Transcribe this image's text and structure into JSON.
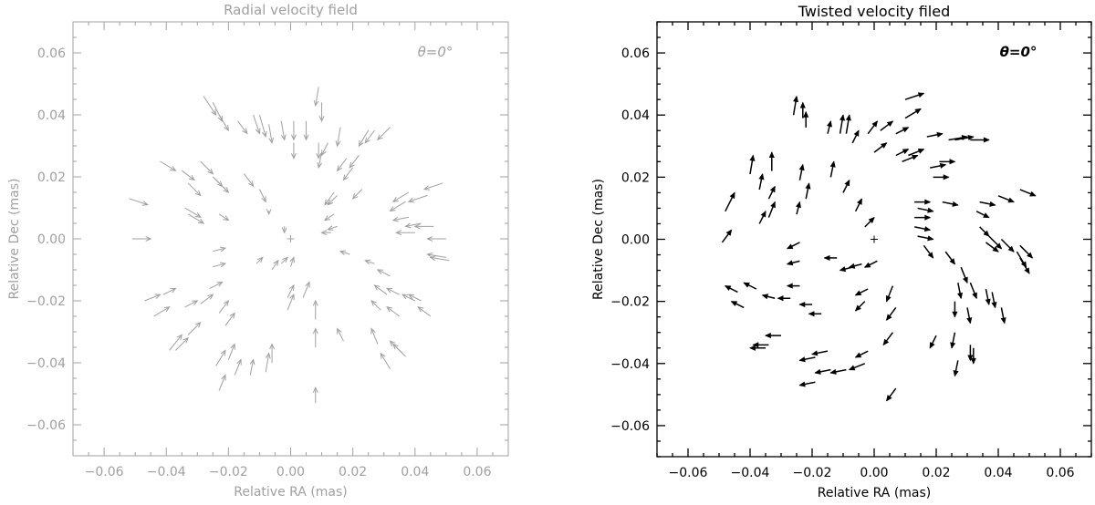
{
  "chart_data": [
    {
      "type": "scatter",
      "subtype": "vector-field",
      "title": "Radial velocity field",
      "annotation": "θ=0°",
      "xlabel": "Relative RA (mas)",
      "ylabel": "Relative Dec (mas)",
      "xlim": [
        -0.07,
        0.07
      ],
      "ylim": [
        -0.07,
        0.07
      ],
      "xticks": [
        -0.06,
        -0.04,
        -0.02,
        0.0,
        0.02,
        0.04,
        0.06
      ],
      "yticks": [
        -0.06,
        -0.04,
        -0.02,
        0.0,
        0.02,
        0.04,
        0.06
      ],
      "xtick_labels": [
        "−0.06",
        "−0.04",
        "−0.02",
        "0.00",
        "0.02",
        "0.04",
        "0.06"
      ],
      "ytick_labels": [
        "−0.06",
        "−0.04",
        "−0.02",
        "0.00",
        "0.02",
        "0.04",
        "0.06"
      ],
      "center_marker": [
        0,
        0
      ],
      "color": "#a0a0a0",
      "arrow_style": "open",
      "vectors": [
        [
          -0.052,
          0.013,
          0.006,
          -0.002
        ],
        [
          -0.051,
          0.0,
          0.006,
          0.0
        ],
        [
          -0.042,
          0.025,
          0.005,
          -0.003
        ],
        [
          -0.035,
          0.022,
          0.004,
          -0.003
        ],
        [
          -0.033,
          0.018,
          0.004,
          -0.004
        ],
        [
          -0.034,
          0.01,
          0.005,
          -0.003
        ],
        [
          -0.033,
          0.008,
          0.005,
          -0.003
        ],
        [
          -0.029,
          0.025,
          0.004,
          -0.004
        ],
        [
          -0.025,
          0.02,
          0.003,
          -0.003
        ],
        [
          -0.023,
          0.008,
          0.003,
          -0.002
        ],
        [
          -0.024,
          0.019,
          0.004,
          -0.004
        ],
        [
          -0.028,
          0.046,
          0.004,
          -0.006
        ],
        [
          -0.025,
          0.044,
          0.003,
          -0.006
        ],
        [
          -0.023,
          0.04,
          0.003,
          -0.005
        ],
        [
          -0.017,
          0.038,
          0.003,
          -0.004
        ],
        [
          -0.012,
          0.04,
          0.002,
          -0.006
        ],
        [
          -0.01,
          0.04,
          0.002,
          -0.007
        ],
        [
          -0.007,
          0.037,
          0.001,
          -0.006
        ],
        [
          -0.003,
          0.038,
          0.001,
          -0.006
        ],
        [
          0.001,
          0.038,
          0.0,
          -0.006
        ],
        [
          0.005,
          0.038,
          0.0,
          -0.006
        ],
        [
          0.009,
          0.049,
          -0.001,
          -0.006
        ],
        [
          0.01,
          0.044,
          0.0,
          -0.006
        ],
        [
          0.016,
          0.036,
          -0.001,
          -0.006
        ],
        [
          0.025,
          0.035,
          -0.003,
          -0.005
        ],
        [
          0.027,
          0.035,
          -0.003,
          -0.004
        ],
        [
          0.032,
          0.036,
          -0.004,
          -0.004
        ],
        [
          0.001,
          0.031,
          0.0,
          -0.005
        ],
        [
          0.009,
          0.031,
          0.0,
          -0.005
        ],
        [
          0.01,
          0.028,
          -0.001,
          -0.005
        ],
        [
          0.012,
          0.031,
          -0.002,
          -0.004
        ],
        [
          0.018,
          0.026,
          -0.003,
          -0.004
        ],
        [
          0.022,
          0.027,
          -0.003,
          -0.004
        ],
        [
          0.02,
          0.023,
          -0.003,
          -0.004
        ],
        [
          0.014,
          0.015,
          -0.003,
          -0.004
        ],
        [
          0.015,
          0.014,
          -0.003,
          -0.003
        ],
        [
          0.023,
          0.016,
          -0.003,
          -0.003
        ],
        [
          0.037,
          0.012,
          -0.005,
          -0.003
        ],
        [
          0.038,
          0.015,
          -0.005,
          -0.003
        ],
        [
          0.044,
          0.014,
          -0.006,
          -0.002
        ],
        [
          0.049,
          0.018,
          -0.006,
          -0.002
        ],
        [
          0.038,
          0.007,
          -0.005,
          -0.001
        ],
        [
          0.042,
          0.005,
          -0.005,
          -0.001
        ],
        [
          0.046,
          0.004,
          -0.006,
          0.0
        ],
        [
          0.04,
          0.002,
          -0.006,
          0.0
        ],
        [
          0.05,
          0.0,
          -0.006,
          0.0
        ],
        [
          0.051,
          -0.007,
          -0.006,
          0.001
        ],
        [
          0.05,
          -0.006,
          -0.006,
          0.001
        ],
        [
          0.014,
          0.008,
          -0.003,
          -0.002
        ],
        [
          0.015,
          0.004,
          -0.003,
          -0.001
        ],
        [
          0.013,
          0.002,
          -0.003,
          0.0
        ],
        [
          0.019,
          -0.005,
          -0.003,
          0.001
        ],
        [
          0.027,
          -0.008,
          -0.003,
          0.001
        ],
        [
          0.032,
          -0.012,
          -0.004,
          0.002
        ],
        [
          0.031,
          -0.018,
          -0.004,
          0.003
        ],
        [
          0.035,
          -0.018,
          -0.004,
          0.002
        ],
        [
          0.04,
          -0.02,
          -0.004,
          0.002
        ],
        [
          0.042,
          -0.02,
          -0.004,
          0.002
        ],
        [
          0.045,
          -0.025,
          -0.004,
          0.003
        ],
        [
          0.029,
          -0.023,
          -0.003,
          0.003
        ],
        [
          0.035,
          -0.025,
          -0.004,
          0.003
        ],
        [
          0.036,
          -0.037,
          -0.004,
          0.004
        ],
        [
          0.037,
          -0.038,
          -0.004,
          0.004
        ],
        [
          0.032,
          -0.042,
          -0.003,
          0.005
        ],
        [
          0.028,
          -0.034,
          -0.002,
          0.005
        ],
        [
          0.017,
          -0.033,
          -0.002,
          0.004
        ],
        [
          0.008,
          -0.035,
          0.0,
          0.006
        ],
        [
          0.008,
          -0.026,
          0.0,
          0.006
        ],
        [
          -0.001,
          -0.023,
          0.002,
          0.005
        ],
        [
          -0.001,
          -0.019,
          0.002,
          0.004
        ],
        [
          0.004,
          -0.019,
          0.002,
          0.005
        ],
        [
          0.0,
          -0.009,
          0.001,
          0.003
        ],
        [
          -0.003,
          -0.008,
          0.002,
          0.002
        ],
        [
          -0.006,
          -0.01,
          0.002,
          0.003
        ],
        [
          -0.011,
          -0.008,
          0.002,
          0.002
        ],
        [
          -0.025,
          -0.004,
          0.004,
          0.001
        ],
        [
          -0.025,
          -0.009,
          0.004,
          0.001
        ],
        [
          -0.026,
          -0.016,
          0.004,
          0.002
        ],
        [
          -0.029,
          -0.021,
          0.004,
          0.003
        ],
        [
          -0.023,
          -0.024,
          0.003,
          0.004
        ],
        [
          -0.021,
          -0.028,
          0.003,
          0.004
        ],
        [
          -0.034,
          -0.022,
          0.004,
          0.002
        ],
        [
          -0.041,
          -0.018,
          0.004,
          0.002
        ],
        [
          -0.047,
          -0.02,
          0.005,
          0.002
        ],
        [
          -0.044,
          -0.025,
          0.005,
          0.003
        ],
        [
          -0.039,
          -0.036,
          0.004,
          0.005
        ],
        [
          -0.037,
          -0.036,
          0.004,
          0.004
        ],
        [
          -0.033,
          -0.031,
          0.004,
          0.004
        ],
        [
          -0.024,
          -0.041,
          0.003,
          0.005
        ],
        [
          -0.02,
          -0.039,
          0.002,
          0.005
        ],
        [
          -0.023,
          -0.049,
          0.002,
          0.005
        ],
        [
          -0.018,
          -0.044,
          0.002,
          0.005
        ],
        [
          -0.013,
          -0.044,
          0.001,
          0.005
        ],
        [
          -0.008,
          -0.043,
          0.001,
          0.006
        ],
        [
          -0.006,
          -0.04,
          0.0,
          0.006
        ],
        [
          0.008,
          -0.053,
          0.0,
          0.005
        ],
        [
          -0.007,
          0.009,
          0.0,
          -0.001
        ],
        [
          -0.002,
          0.004,
          0.0,
          -0.002
        ],
        [
          -0.01,
          0.016,
          0.002,
          -0.004
        ],
        [
          -0.015,
          0.021,
          0.003,
          -0.004
        ]
      ]
    },
    {
      "type": "scatter",
      "subtype": "vector-field",
      "title": "Twisted velocity filed",
      "annotation": "θ=0°",
      "xlabel": "Relative RA (mas)",
      "ylabel": "Relative Dec (mas)",
      "xlim": [
        -0.07,
        0.07
      ],
      "ylim": [
        -0.07,
        0.07
      ],
      "xticks": [
        -0.06,
        -0.04,
        -0.02,
        0.0,
        0.02,
        0.04,
        0.06
      ],
      "yticks": [
        -0.06,
        -0.04,
        -0.02,
        0.0,
        0.02,
        0.04,
        0.06
      ],
      "xtick_labels": [
        "−0.06",
        "−0.04",
        "−0.02",
        "0.00",
        "0.02",
        "0.04",
        "0.06"
      ],
      "ytick_labels": [
        "−0.06",
        "−0.04",
        "−0.02",
        "0.00",
        "0.02",
        "0.04",
        "0.06"
      ],
      "center_marker": [
        0,
        0
      ],
      "color": "#000000",
      "arrow_style": "filled",
      "vectors": [
        [
          -0.048,
          0.009,
          0.003,
          0.006
        ],
        [
          -0.049,
          -0.001,
          0.003,
          0.004
        ],
        [
          -0.04,
          0.021,
          0.001,
          0.006
        ],
        [
          -0.037,
          0.016,
          0.001,
          0.005
        ],
        [
          -0.034,
          0.013,
          0.002,
          0.004
        ],
        [
          -0.037,
          0.005,
          0.002,
          0.004
        ],
        [
          -0.034,
          0.007,
          0.002,
          0.005
        ],
        [
          -0.033,
          0.022,
          0.0,
          0.006
        ],
        [
          -0.024,
          0.019,
          0.001,
          0.005
        ],
        [
          -0.025,
          0.008,
          0.001,
          0.004
        ],
        [
          -0.022,
          0.013,
          0.001,
          0.005
        ],
        [
          -0.026,
          0.04,
          0.001,
          0.006
        ],
        [
          -0.023,
          0.039,
          0.0,
          0.005
        ],
        [
          -0.022,
          0.036,
          0.0,
          0.005
        ],
        [
          -0.015,
          0.034,
          0.001,
          0.004
        ],
        [
          -0.011,
          0.034,
          0.001,
          0.006
        ],
        [
          -0.009,
          0.034,
          0.001,
          0.006
        ],
        [
          -0.007,
          0.031,
          0.002,
          0.004
        ],
        [
          -0.002,
          0.034,
          0.003,
          0.004
        ],
        [
          0.002,
          0.035,
          0.004,
          0.003
        ],
        [
          0.007,
          0.034,
          0.004,
          0.002
        ],
        [
          0.01,
          0.045,
          0.006,
          0.002
        ],
        [
          0.01,
          0.039,
          0.005,
          0.003
        ],
        [
          0.017,
          0.033,
          0.005,
          0.001
        ],
        [
          0.024,
          0.032,
          0.006,
          0.001
        ],
        [
          0.026,
          0.032,
          0.006,
          0.001
        ],
        [
          0.031,
          0.032,
          0.006,
          0.0
        ],
        [
          0.0,
          0.028,
          0.004,
          0.003
        ],
        [
          0.007,
          0.027,
          0.004,
          0.002
        ],
        [
          0.009,
          0.025,
          0.005,
          0.002
        ],
        [
          0.011,
          0.027,
          0.005,
          0.002
        ],
        [
          0.018,
          0.023,
          0.005,
          0.001
        ],
        [
          0.021,
          0.025,
          0.005,
          0.0
        ],
        [
          0.019,
          0.02,
          0.005,
          0.0
        ],
        [
          0.013,
          0.012,
          0.005,
          0.0
        ],
        [
          0.014,
          0.01,
          0.005,
          -0.001
        ],
        [
          0.022,
          0.012,
          0.005,
          -0.001
        ],
        [
          0.033,
          0.009,
          0.004,
          -0.002
        ],
        [
          0.034,
          0.012,
          0.005,
          -0.001
        ],
        [
          0.04,
          0.014,
          0.005,
          -0.002
        ],
        [
          0.047,
          0.016,
          0.005,
          -0.002
        ],
        [
          0.034,
          0.004,
          0.003,
          -0.003
        ],
        [
          0.037,
          0.001,
          0.004,
          -0.004
        ],
        [
          0.041,
          0.0,
          0.004,
          -0.004
        ],
        [
          0.036,
          -0.001,
          0.004,
          -0.003
        ],
        [
          0.047,
          -0.002,
          0.004,
          -0.004
        ],
        [
          0.047,
          -0.006,
          0.003,
          -0.005
        ],
        [
          0.046,
          -0.004,
          0.003,
          -0.005
        ],
        [
          0.013,
          0.007,
          0.005,
          0.0
        ],
        [
          0.013,
          0.004,
          0.005,
          -0.001
        ],
        [
          0.014,
          0.001,
          0.005,
          -0.001
        ],
        [
          0.016,
          -0.002,
          0.003,
          -0.004
        ],
        [
          0.023,
          -0.004,
          0.003,
          -0.004
        ],
        [
          0.028,
          -0.009,
          0.002,
          -0.005
        ],
        [
          0.027,
          -0.014,
          0.001,
          -0.005
        ],
        [
          0.031,
          -0.014,
          0.002,
          -0.005
        ],
        [
          0.036,
          -0.016,
          0.001,
          -0.005
        ],
        [
          0.038,
          -0.017,
          0.001,
          -0.005
        ],
        [
          0.041,
          -0.022,
          0.001,
          -0.005
        ],
        [
          0.026,
          -0.02,
          0.0,
          -0.005
        ],
        [
          0.03,
          -0.022,
          0.001,
          -0.005
        ],
        [
          0.031,
          -0.034,
          0.0,
          -0.005
        ],
        [
          0.032,
          -0.035,
          0.0,
          -0.005
        ],
        [
          0.027,
          -0.039,
          -0.001,
          -0.005
        ],
        [
          0.026,
          -0.03,
          -0.001,
          -0.005
        ],
        [
          0.02,
          -0.031,
          -0.002,
          -0.004
        ],
        [
          0.006,
          -0.03,
          -0.003,
          -0.004
        ],
        [
          0.007,
          -0.022,
          -0.003,
          -0.004
        ],
        [
          -0.003,
          -0.02,
          -0.003,
          -0.003
        ],
        [
          -0.002,
          -0.016,
          -0.004,
          -0.002
        ],
        [
          0.006,
          -0.015,
          -0.002,
          -0.005
        ],
        [
          0.001,
          -0.007,
          -0.004,
          -0.002
        ],
        [
          -0.004,
          -0.008,
          -0.004,
          -0.001
        ],
        [
          -0.007,
          -0.009,
          -0.004,
          -0.001
        ],
        [
          -0.012,
          -0.006,
          -0.004,
          0.0
        ],
        [
          -0.024,
          -0.001,
          -0.004,
          -0.002
        ],
        [
          -0.024,
          -0.007,
          -0.004,
          -0.001
        ],
        [
          -0.024,
          -0.015,
          -0.004,
          0.0
        ],
        [
          -0.027,
          -0.019,
          -0.004,
          0.0
        ],
        [
          -0.02,
          -0.021,
          -0.004,
          0.0
        ],
        [
          -0.017,
          -0.024,
          -0.004,
          0.0
        ],
        [
          -0.032,
          -0.019,
          -0.004,
          0.001
        ],
        [
          -0.038,
          -0.016,
          -0.004,
          0.002
        ],
        [
          -0.044,
          -0.017,
          -0.004,
          0.002
        ],
        [
          -0.042,
          -0.022,
          -0.004,
          0.002
        ],
        [
          -0.035,
          -0.035,
          -0.005,
          0.0
        ],
        [
          -0.034,
          -0.034,
          -0.005,
          0.0
        ],
        [
          -0.03,
          -0.031,
          -0.005,
          0.0
        ],
        [
          -0.019,
          -0.038,
          -0.005,
          -0.001
        ],
        [
          -0.015,
          -0.036,
          -0.005,
          -0.001
        ],
        [
          -0.019,
          -0.046,
          -0.005,
          -0.001
        ],
        [
          -0.014,
          -0.042,
          -0.005,
          -0.001
        ],
        [
          -0.009,
          -0.042,
          -0.005,
          -0.001
        ],
        [
          -0.003,
          -0.04,
          -0.005,
          -0.002
        ],
        [
          -0.002,
          -0.036,
          -0.004,
          -0.002
        ],
        [
          0.007,
          -0.048,
          -0.003,
          -0.004
        ],
        [
          -0.006,
          0.009,
          0.002,
          0.004
        ],
        [
          -0.003,
          0.004,
          0.003,
          0.003
        ],
        [
          -0.01,
          0.015,
          0.002,
          0.004
        ],
        [
          -0.014,
          0.02,
          0.001,
          0.005
        ]
      ]
    }
  ]
}
